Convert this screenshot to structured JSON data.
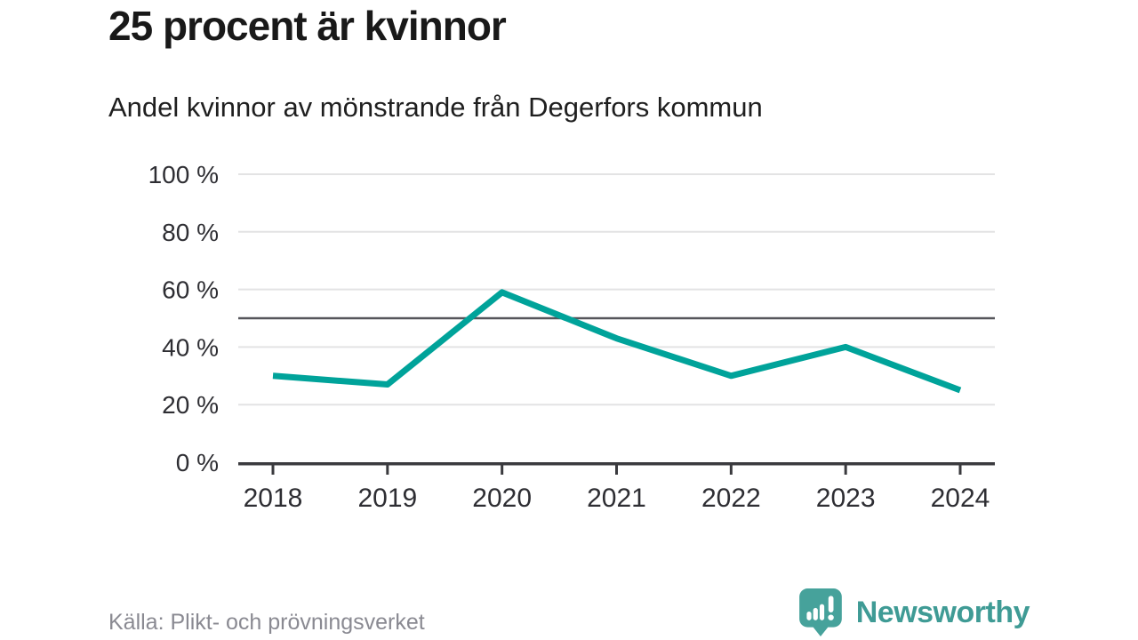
{
  "chart_data": {
    "type": "line",
    "title": "25 procent är kvinnor",
    "subtitle": "Andel kvinnor av mönstrande från Degerfors kommun",
    "x": [
      2018,
      2019,
      2020,
      2021,
      2022,
      2023,
      2024
    ],
    "values": [
      30,
      27,
      59,
      43,
      30,
      40,
      25
    ],
    "ylim": [
      0,
      100
    ],
    "yticks": [
      0,
      20,
      40,
      60,
      80,
      100
    ],
    "ytick_suffix": " %",
    "reference_line": 50,
    "grid": true,
    "legend": "none",
    "source": "Källa: Plikt- och prövningsverket",
    "colors": {
      "line": "#00a39a",
      "grid": "#e3e3e4",
      "reference": "#55555b",
      "axis": "#3a3a3e",
      "tick_label": "#2e2e33"
    }
  },
  "footer": {
    "brand": "Newsworthy",
    "brand_color": "#3f9b95",
    "logo_bubble_color": "#46a29b"
  }
}
